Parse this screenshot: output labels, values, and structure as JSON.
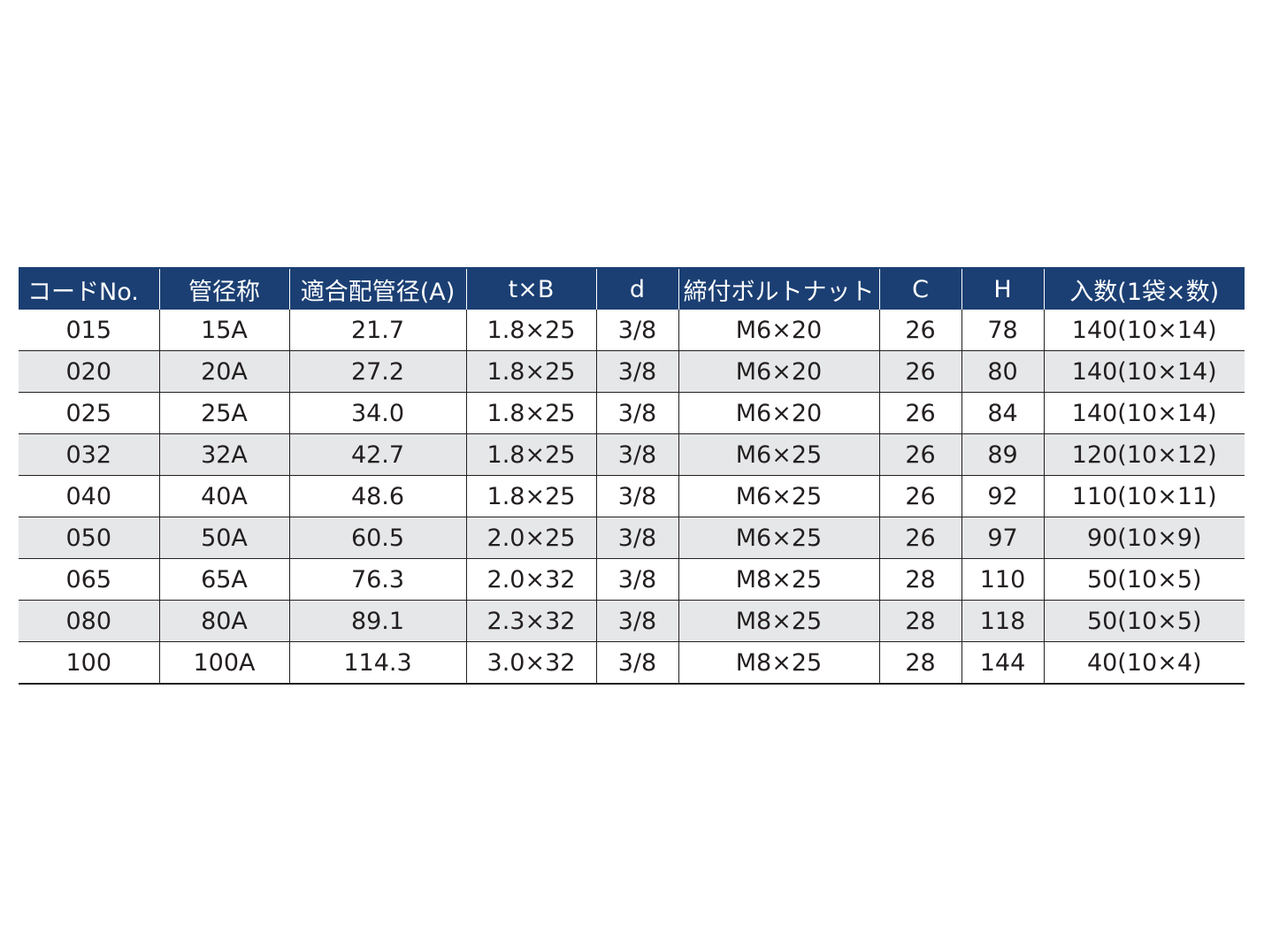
{
  "table": {
    "headers": [
      "コードNo.",
      "管径称",
      "適合配管径(A)",
      "t×B",
      "d",
      "締付ボルトナット",
      "C",
      "H",
      "入数(1袋×数)"
    ],
    "rows": [
      [
        "015",
        "15A",
        "21.7",
        "1.8×25",
        "3/8",
        "M6×20",
        "26",
        "78",
        "140(10×14)"
      ],
      [
        "020",
        "20A",
        "27.2",
        "1.8×25",
        "3/8",
        "M6×20",
        "26",
        "80",
        "140(10×14)"
      ],
      [
        "025",
        "25A",
        "34.0",
        "1.8×25",
        "3/8",
        "M6×20",
        "26",
        "84",
        "140(10×14)"
      ],
      [
        "032",
        "32A",
        "42.7",
        "1.8×25",
        "3/8",
        "M6×25",
        "26",
        "89",
        "120(10×12)"
      ],
      [
        "040",
        "40A",
        "48.6",
        "1.8×25",
        "3/8",
        "M6×25",
        "26",
        "92",
        "110(10×11)"
      ],
      [
        "050",
        "50A",
        "60.5",
        "2.0×25",
        "3/8",
        "M6×25",
        "26",
        "97",
        "90(10×9)"
      ],
      [
        "065",
        "65A",
        "76.3",
        "2.0×32",
        "3/8",
        "M8×25",
        "28",
        "110",
        "50(10×5)"
      ],
      [
        "080",
        "80A",
        "89.1",
        "2.3×32",
        "3/8",
        "M8×25",
        "28",
        "118",
        "50(10×5)"
      ],
      [
        "100",
        "100A",
        "114.3",
        "3.0×32",
        "3/8",
        "M8×25",
        "28",
        "144",
        "40(10×4)"
      ]
    ]
  },
  "colors": {
    "header_background": "#1b3f73",
    "header_text": "#ffffff",
    "stripe_background": "#e6e7e8",
    "grid_line": "#231f20"
  }
}
